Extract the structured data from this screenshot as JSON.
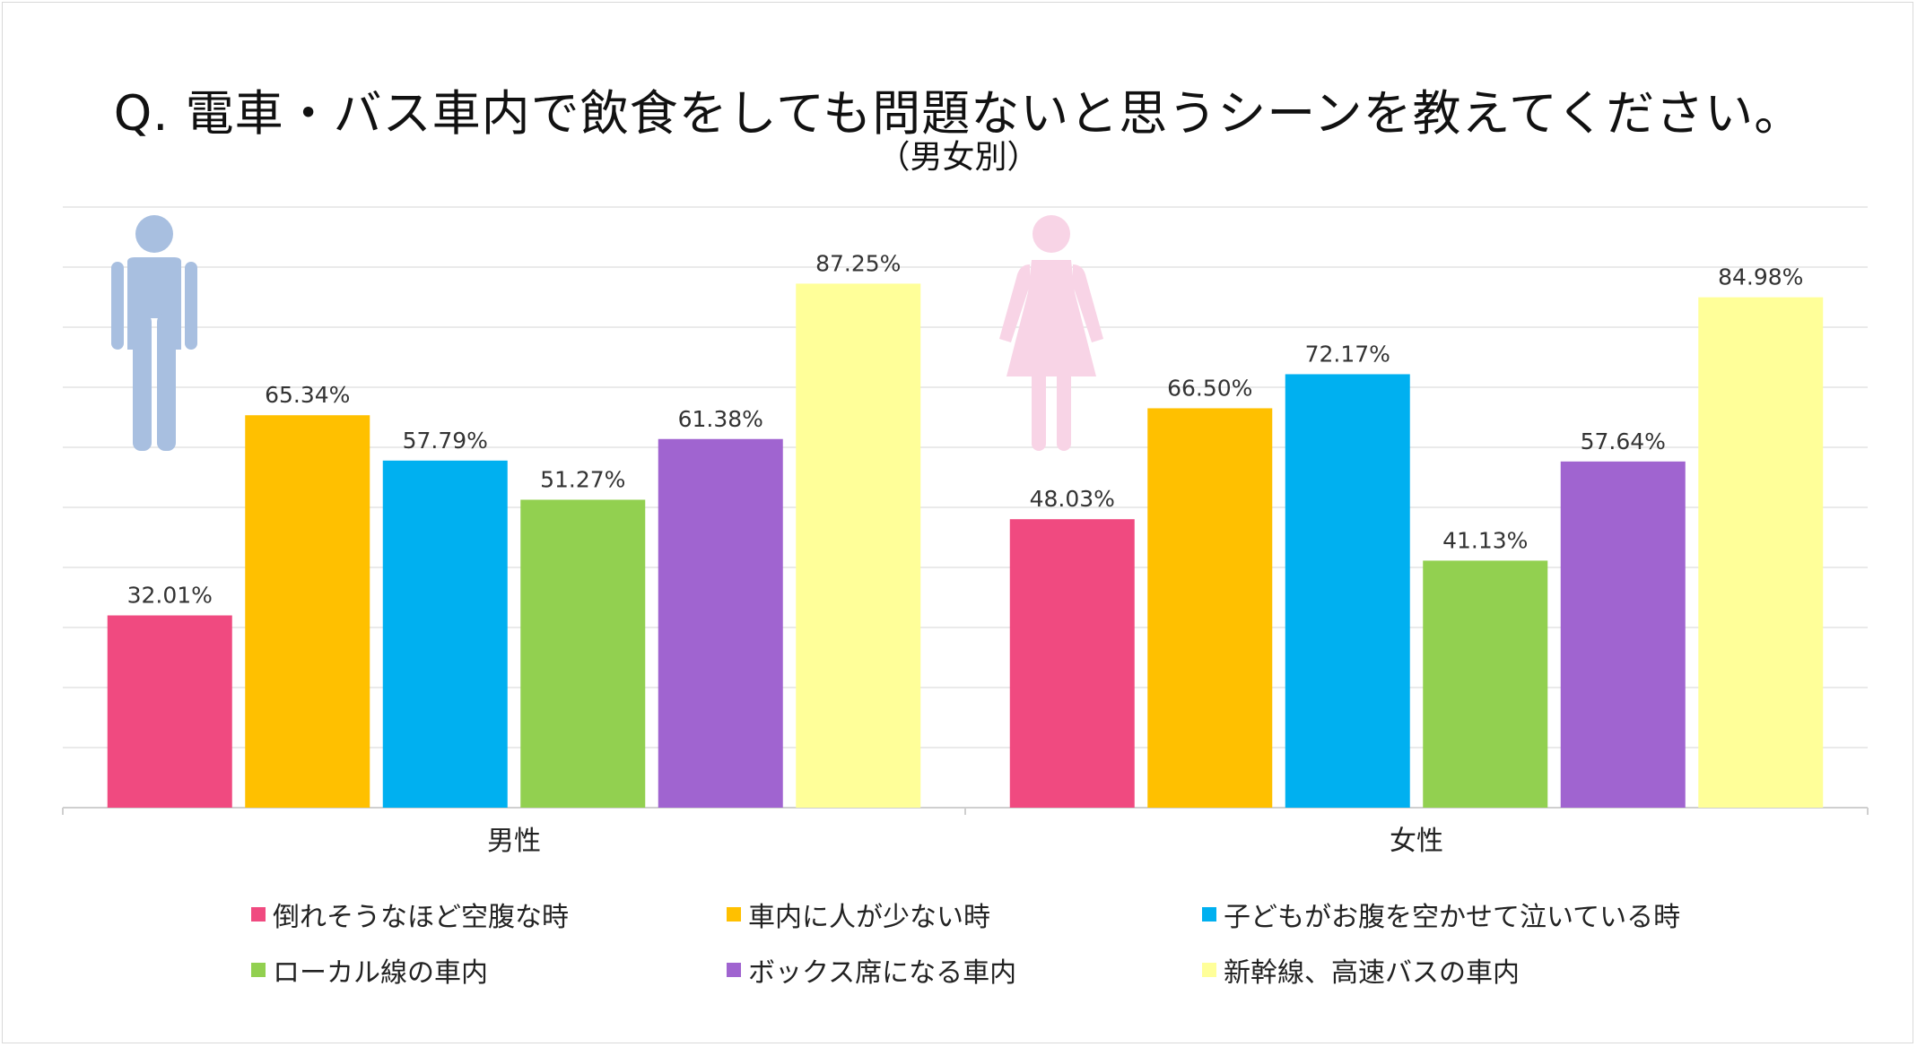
{
  "title": "Q.  電車・バス車内で飲食をしても問題ないと思うシーンを教えてください。",
  "subtitle": "（男女別）",
  "chart_data": {
    "type": "bar",
    "categories": [
      "男性",
      "女性"
    ],
    "series": [
      {
        "name": "倒れそうなほど空腹な時",
        "color": "#F04A80",
        "values": [
          32.01,
          48.03
        ]
      },
      {
        "name": "車内に人が少ない時",
        "color": "#FFC000",
        "values": [
          65.34,
          66.5
        ]
      },
      {
        "name": "子どもがお腹を空かせて泣いている時",
        "color": "#00B0F0",
        "values": [
          57.79,
          72.17
        ]
      },
      {
        "name": "ローカル線の車内",
        "color": "#92D050",
        "values": [
          51.27,
          41.13
        ]
      },
      {
        "name": "ボックス席になる車内",
        "color": "#A064D0",
        "values": [
          61.38,
          57.64
        ]
      },
      {
        "name": "新幹線、高速バスの車内",
        "color": "#FFFF99",
        "values": [
          87.25,
          84.98
        ]
      }
    ],
    "data_labels": [
      [
        "32.01%",
        "48.03%"
      ],
      [
        "65.34%",
        "66.50%"
      ],
      [
        "57.79%",
        "72.17%"
      ],
      [
        "51.27%",
        "41.13%"
      ],
      [
        "61.38%",
        "57.64%"
      ],
      [
        "87.25%",
        "84.98%"
      ]
    ],
    "ylim": [
      0,
      100
    ],
    "grid": true,
    "legend_position": "bottom",
    "icons": [
      {
        "name": "male-icon",
        "color": "#A8BFE0"
      },
      {
        "name": "female-icon",
        "color": "#F8D4E6"
      }
    ]
  }
}
